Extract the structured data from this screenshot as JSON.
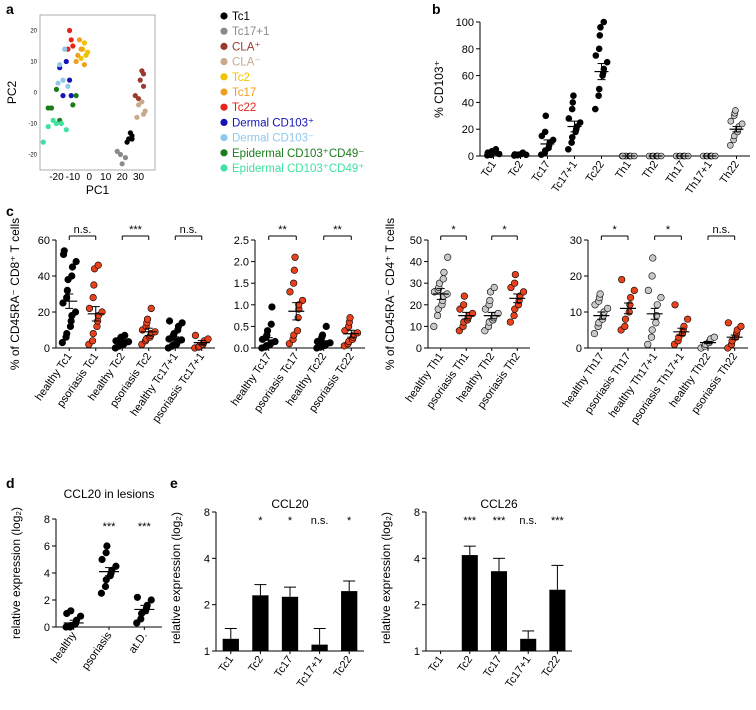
{
  "panels": {
    "a": "a",
    "b": "b",
    "c": "c",
    "d": "d",
    "e": "e"
  },
  "legend": [
    {
      "label": "Tc1",
      "color": "#000000",
      "text_color": "#000000"
    },
    {
      "label": "Tc17+1",
      "color": "#8a8a8a",
      "text_color": "#8a8a8a"
    },
    {
      "label": "CLA⁺",
      "color": "#9a3b2e",
      "text_color": "#9a3b2e"
    },
    {
      "label": "CLA⁻",
      "color": "#c8a98c",
      "text_color": "#c8a98c"
    },
    {
      "label": "Tc2",
      "color": "#f2c200",
      "text_color": "#f2c200"
    },
    {
      "label": "Tc17",
      "color": "#f0a020",
      "text_color": "#f0a020"
    },
    {
      "label": "Tc22",
      "color": "#e8231b",
      "text_color": "#e8231b"
    },
    {
      "label": "Dermal CD103⁺",
      "color": "#1414b8",
      "text_color": "#1414b8"
    },
    {
      "label": "Dermal CD103⁻",
      "color": "#8ec8ec",
      "text_color": "#8ec8ec"
    },
    {
      "label": "Epidermal CD103⁺CD49⁻",
      "color": "#1a7d1a",
      "text_color": "#1a7d1a"
    },
    {
      "label": "Epidermal CD103⁺CD49⁺",
      "color": "#40e0a0",
      "text_color": "#40e0a0"
    }
  ],
  "chart_data": [
    {
      "id": "a",
      "type": "scatter",
      "title": "",
      "xlabel": "PC1",
      "ylabel": "PC2",
      "xlim": [
        -30,
        40
      ],
      "ylim": [
        -25,
        25
      ],
      "xticks": [
        "-20",
        "-10",
        "0",
        "10",
        "20",
        "30"
      ],
      "yticks": [
        "20",
        "10",
        "0",
        "-10",
        "-20"
      ],
      "series": [
        {
          "name": "Tc1",
          "points": [
            [
              25,
              -13
            ],
            [
              26,
              -14
            ],
            [
              24,
              -15
            ],
            [
              23,
              -16
            ],
            [
              26,
              -15
            ]
          ]
        },
        {
          "name": "Tc17+1",
          "points": [
            [
              17,
              -19
            ],
            [
              19,
              -20
            ],
            [
              20,
              -23
            ],
            [
              22,
              -21
            ]
          ]
        },
        {
          "name": "CLA⁺",
          "points": [
            [
              31,
              4
            ],
            [
              33,
              2
            ],
            [
              30,
              -2
            ],
            [
              28,
              -1
            ],
            [
              32,
              7
            ],
            [
              33,
              6
            ]
          ]
        },
        {
          "name": "CLA⁻",
          "points": [
            [
              32,
              -3
            ],
            [
              30,
              -4
            ],
            [
              33,
              -7
            ],
            [
              29,
              -8
            ],
            [
              34,
              -6
            ]
          ]
        },
        {
          "name": "Tc2",
          "points": [
            [
              -3,
              16
            ],
            [
              -4,
              14
            ],
            [
              -2,
              12
            ],
            [
              -5,
              11
            ],
            [
              -1,
              13
            ]
          ]
        },
        {
          "name": "Tc17",
          "points": [
            [
              -6,
              17
            ],
            [
              -5,
              14
            ],
            [
              -3,
              9
            ],
            [
              -7,
              12
            ],
            [
              -8,
              10
            ]
          ]
        },
        {
          "name": "Tc22",
          "points": [
            [
              -12,
              20
            ],
            [
              -11,
              17
            ],
            [
              -13,
              14
            ],
            [
              -10,
              15
            ]
          ]
        },
        {
          "name": "Dermal CD103⁺",
          "points": [
            [
              -14,
              10
            ],
            [
              -18,
              8
            ],
            [
              -12,
              4
            ],
            [
              -11,
              -1
            ],
            [
              -16,
              -1
            ]
          ]
        },
        {
          "name": "Dermal CD103⁻",
          "points": [
            [
              -15,
              14
            ],
            [
              -18,
              9
            ],
            [
              -16,
              4
            ],
            [
              -13,
              2
            ],
            [
              -19,
              3
            ]
          ]
        },
        {
          "name": "Epidermal CD103⁺CD49⁻",
          "points": [
            [
              -20,
              1
            ],
            [
              -8,
              -1
            ],
            [
              -10,
              -4
            ],
            [
              -23,
              -5
            ],
            [
              -25,
              -5
            ],
            [
              -18,
              -9
            ]
          ]
        },
        {
          "name": "Epidermal CD103⁺CD49⁺",
          "points": [
            [
              -22,
              -9
            ],
            [
              -25,
              -11
            ],
            [
              -28,
              -16
            ],
            [
              -17,
              -10
            ],
            [
              -20,
              -10
            ],
            [
              -14,
              -12
            ]
          ]
        }
      ]
    },
    {
      "id": "b",
      "type": "scatter",
      "ylabel": "% CD103⁺",
      "ylim": [
        0,
        100
      ],
      "yticks": [
        "0",
        "20",
        "40",
        "60",
        "80",
        "100"
      ],
      "categories": [
        "Tc1",
        "Tc2",
        "Tc17",
        "Tc17+1",
        "Tc22",
        "Th1",
        "Th2",
        "Th17",
        "Th17+1",
        "Th22"
      ],
      "fill": [
        "#000",
        "#000",
        "#000",
        "#000",
        "#000",
        "#c8c8c8",
        "#c8c8c8",
        "#c8c8c8",
        "#c8c8c8",
        "#c8c8c8"
      ],
      "means": [
        2,
        1,
        9,
        22,
        63,
        0,
        0,
        0,
        0,
        20
      ],
      "sem": [
        1,
        0.5,
        3,
        4,
        6,
        0,
        0,
        0,
        0,
        2
      ],
      "values": [
        [
          0.5,
          1,
          2,
          3,
          4,
          5,
          1.5,
          2.5,
          0.8,
          3.5
        ],
        [
          0.3,
          0.6,
          1,
          1.5,
          2,
          2.5,
          0.9,
          1.2
        ],
        [
          1,
          2,
          4,
          6,
          8,
          10,
          12,
          15,
          18,
          30
        ],
        [
          5,
          10,
          14,
          18,
          20,
          22,
          25,
          28,
          35,
          40,
          45
        ],
        [
          35,
          45,
          50,
          60,
          62,
          65,
          70,
          75,
          80,
          90,
          96,
          100
        ],
        [
          0,
          0,
          0,
          0,
          0,
          0,
          0,
          0
        ],
        [
          0,
          0,
          0,
          0,
          0,
          0,
          0
        ],
        [
          0,
          0,
          0,
          0,
          0,
          0,
          0
        ],
        [
          0,
          0,
          0,
          0,
          0,
          0,
          0
        ],
        [
          8,
          12,
          15,
          18,
          20,
          22,
          24,
          26,
          30,
          32,
          34
        ]
      ]
    },
    {
      "id": "c1",
      "type": "scatter",
      "ylabel": "% of CD45RA⁻ CD8⁺ T cells",
      "ylim": [
        0,
        60
      ],
      "yticks": [
        "0",
        "20",
        "40",
        "60"
      ],
      "categories": [
        "healthy Tc1",
        "psoriasis Tc1",
        "healthy Tc2",
        "psoriasis Tc2",
        "healthy Tc17+1",
        "psoriasis Tc17+1"
      ],
      "fill": [
        "#000",
        "#e8421c",
        "#000",
        "#e8421c",
        "#000",
        "#e8421c"
      ],
      "means": [
        26,
        19,
        3,
        9,
        5,
        3
      ],
      "sem": [
        4,
        4,
        0.8,
        2,
        1.2,
        1.2
      ],
      "sig": [
        "n.s.",
        "***",
        "n.s."
      ],
      "values": [
        [
          3,
          6,
          8,
          12,
          15,
          18,
          20,
          25,
          28,
          32,
          38,
          40,
          45,
          48,
          52,
          54
        ],
        [
          2,
          4,
          8,
          12,
          15,
          18,
          20,
          22,
          28,
          35,
          44,
          46
        ],
        [
          0,
          1,
          1.5,
          2,
          2.5,
          3,
          3.5,
          4,
          4.5,
          5,
          6,
          7
        ],
        [
          2,
          4,
          5,
          6,
          7,
          8,
          9,
          10,
          12,
          14,
          16,
          22
        ],
        [
          0,
          1,
          1.5,
          2,
          3,
          4,
          4.5,
          5,
          6,
          7,
          8,
          10,
          12,
          14,
          15
        ],
        [
          0,
          0.5,
          1,
          2,
          3,
          4,
          5,
          7
        ]
      ]
    },
    {
      "id": "c2",
      "type": "scatter",
      "ylim": [
        0,
        2.5
      ],
      "yticks": [
        "0.0",
        "0.5",
        "1.0",
        "1.5",
        "2.0",
        "2.5"
      ],
      "categories": [
        "healthy Tc17",
        "psoriasis Tc17",
        "healthy Tc22",
        "psoriasis Tc22"
      ],
      "fill": [
        "#000",
        "#e8421c",
        "#000",
        "#e8421c"
      ],
      "means": [
        0.18,
        0.85,
        0.1,
        0.33
      ],
      "sem": [
        0.06,
        0.2,
        0.03,
        0.08
      ],
      "sig": [
        "**",
        "**"
      ],
      "values": [
        [
          0,
          0.02,
          0.05,
          0.08,
          0.1,
          0.12,
          0.15,
          0.2,
          0.25,
          0.3,
          0.4,
          0.55,
          0.95
        ],
        [
          0.1,
          0.2,
          0.3,
          0.4,
          0.7,
          0.9,
          1.1,
          1.3,
          1.5,
          1.8,
          2.1,
          1.0
        ],
        [
          0,
          0.02,
          0.04,
          0.06,
          0.08,
          0.1,
          0.12,
          0.15,
          0.2,
          0.25,
          0.3,
          0.5
        ],
        [
          0.05,
          0.1,
          0.15,
          0.2,
          0.25,
          0.3,
          0.35,
          0.4,
          0.5,
          0.6,
          0.7
        ]
      ]
    },
    {
      "id": "c3",
      "type": "scatter",
      "ylabel": "% of CD45RA⁻ CD4⁺ T cells",
      "ylim": [
        0,
        50
      ],
      "yticks": [
        "0",
        "10",
        "20",
        "30",
        "40",
        "50"
      ],
      "categories": [
        "healthy Th1",
        "psoriasis Th1",
        "healthy Th2",
        "psoriasis Th2"
      ],
      "fill": [
        "#c8c8c8",
        "#e8421c",
        "#c8c8c8",
        "#e8421c"
      ],
      "means": [
        25,
        15,
        15,
        23
      ],
      "sem": [
        2.5,
        1.5,
        1.5,
        2
      ],
      "sig": [
        "*",
        "*"
      ],
      "values": [
        [
          10,
          15,
          18,
          20,
          22,
          24,
          25,
          26,
          27,
          28,
          30,
          32,
          35,
          42
        ],
        [
          8,
          10,
          12,
          13,
          14,
          15,
          16,
          18,
          20,
          24
        ],
        [
          8,
          10,
          12,
          13,
          14,
          15,
          16,
          18,
          20,
          22,
          26,
          28
        ],
        [
          12,
          15,
          18,
          20,
          22,
          24,
          26,
          28,
          30,
          34
        ]
      ]
    },
    {
      "id": "c4",
      "type": "scatter",
      "ylim": [
        0,
        30
      ],
      "yticks": [
        "0",
        "10",
        "20",
        "30"
      ],
      "categories": [
        "healthy Th17",
        "psoriasis Th17",
        "healthy Th17+1",
        "psoriasis Th17+1",
        "healthy Th22",
        "psoriasis Th22"
      ],
      "fill": [
        "#c8c8c8",
        "#e8421c",
        "#c8c8c8",
        "#e8421c",
        "#c8c8c8",
        "#e8421c"
      ],
      "means": [
        9,
        11,
        9.5,
        4.5,
        1.5,
        3
      ],
      "sem": [
        1,
        1.5,
        1.5,
        1,
        0.3,
        0.6
      ],
      "sig": [
        "*",
        "*",
        "n.s."
      ],
      "values": [
        [
          4,
          6,
          7,
          8,
          9,
          10,
          11,
          12,
          13,
          14,
          15
        ],
        [
          5,
          6,
          8,
          10,
          12,
          14,
          16,
          19
        ],
        [
          1,
          3,
          5,
          7,
          9,
          12,
          14,
          16,
          20,
          25
        ],
        [
          1,
          2,
          3,
          4,
          5,
          6,
          8,
          12
        ],
        [
          0,
          0.5,
          1,
          1.5,
          2,
          2.5,
          3
        ],
        [
          0,
          1,
          2,
          3,
          4,
          5,
          6,
          7
        ]
      ]
    },
    {
      "id": "d",
      "type": "scatter",
      "title": "CCL20 in lesions",
      "ylabel": "relative expression (log₂)",
      "ylim": [
        0,
        8
      ],
      "yticks": [
        "0",
        "2",
        "4",
        "6",
        "8"
      ],
      "categories": [
        "healthy",
        "psoriasis",
        "at.D."
      ],
      "fill": [
        "#000",
        "#000",
        "#000"
      ],
      "means": [
        0.3,
        4.1,
        1.3
      ],
      "sem": [
        0.2,
        0.3,
        0.3
      ],
      "sig": [
        "",
        "***",
        "***"
      ],
      "values": [
        [
          0,
          0,
          0.1,
          0.2,
          0.3,
          0.5,
          0.8,
          1.0,
          1.2
        ],
        [
          2.5,
          3,
          3.5,
          3.8,
          4,
          4.2,
          4.5,
          5,
          5.5,
          6.0
        ],
        [
          0.3,
          0.6,
          1,
          1.2,
          1.4,
          1.6,
          2.0,
          2.2
        ]
      ]
    },
    {
      "id": "e1",
      "type": "bar",
      "title": "CCL20",
      "ylabel": "relative expression (log₂)",
      "yscale": "log2",
      "ylim": [
        1,
        8
      ],
      "yticks": [
        "1",
        "2",
        "4",
        "8"
      ],
      "categories": [
        "Tc1",
        "Tc2",
        "Tc17",
        "Tc17+1",
        "Tc22"
      ],
      "values": [
        1.2,
        2.3,
        2.25,
        1.1,
        2.45
      ],
      "err": [
        0.2,
        0.4,
        0.35,
        0.3,
        0.4
      ],
      "sig": [
        "",
        "*",
        "*",
        "n.s.",
        "*"
      ]
    },
    {
      "id": "e2",
      "type": "bar",
      "title": "CCL26",
      "ylabel": "relative expression (log₂)",
      "yscale": "log2",
      "ylim": [
        1,
        8
      ],
      "yticks": [
        "1",
        "2",
        "4",
        "8"
      ],
      "categories": [
        "Tc1",
        "Tc2",
        "Tc17",
        "Tc17+1",
        "Tc22"
      ],
      "values": [
        1.0,
        4.2,
        3.3,
        1.2,
        2.5
      ],
      "err": [
        0,
        0.6,
        0.7,
        0.15,
        1.1
      ],
      "sig": [
        "",
        "***",
        "***",
        "n.s.",
        "***"
      ]
    }
  ]
}
